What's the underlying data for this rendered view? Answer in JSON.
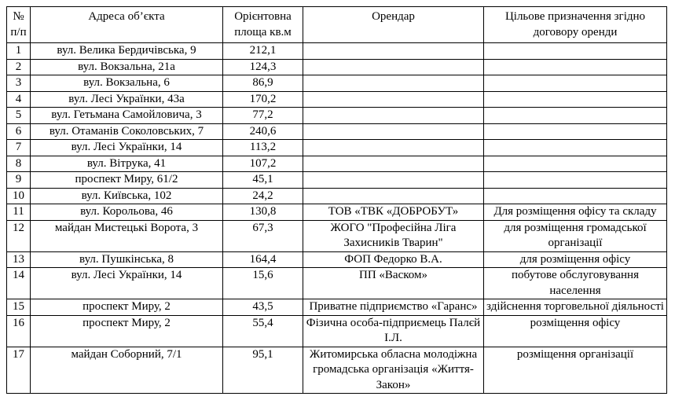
{
  "colors": {
    "border": "#000000",
    "text": "#000000",
    "background": "#ffffff"
  },
  "table": {
    "headers": {
      "num": "№ п/п",
      "address": "Адреса об’єкта",
      "area": "Орієнтовна площа кв.м",
      "tenant": "Орендар",
      "purpose": "Цільове призначення згідно договору оренди"
    },
    "rows": [
      {
        "num": "1",
        "address": "вул. Велика Бердичівська, 9",
        "area": "212,1",
        "tenant": "",
        "purpose": ""
      },
      {
        "num": "2",
        "address": "вул. Вокзальна, 21а",
        "area": "124,3",
        "tenant": "",
        "purpose": ""
      },
      {
        "num": "3",
        "address": "вул. Вокзальна, 6",
        "area": "86,9",
        "tenant": "",
        "purpose": ""
      },
      {
        "num": "4",
        "address": "вул. Лесі Українки, 43а",
        "area": "170,2",
        "tenant": "",
        "purpose": ""
      },
      {
        "num": "5",
        "address": "вул. Гетьмана Самойловича, 3",
        "area": "77,2",
        "tenant": "",
        "purpose": ""
      },
      {
        "num": "6",
        "address": "вул. Отаманів Соколовських, 7",
        "area": "240,6",
        "tenant": "",
        "purpose": ""
      },
      {
        "num": "7",
        "address": "вул. Лесі Українки, 14",
        "area": "113,2",
        "tenant": "",
        "purpose": ""
      },
      {
        "num": "8",
        "address": "вул. Вітрука, 41",
        "area": "107,2",
        "tenant": "",
        "purpose": ""
      },
      {
        "num": "9",
        "address": "проспект Миру, 61/2",
        "area": "45,1",
        "tenant": "",
        "purpose": ""
      },
      {
        "num": "10",
        "address": "вул. Київська, 102",
        "area": "24,2",
        "tenant": "",
        "purpose": ""
      },
      {
        "num": "11",
        "address": "вул. Корольова, 46",
        "area": "130,8",
        "tenant": "ТОВ «ТВК «ДОБРОБУТ»",
        "purpose": "Для розміщення  офісу та складу"
      },
      {
        "num": "12",
        "address": "майдан Мистецькі Ворота, 3",
        "area": "67,3",
        "tenant": "ЖОГО \"Професійна Ліга Захисників Тварин\"",
        "purpose": "для розміщення громадської організації"
      },
      {
        "num": "13",
        "address": "вул. Пушкінська, 8",
        "area": "164,4",
        "tenant": "ФОП Федорко В.А.",
        "purpose": "для розміщення  офісу"
      },
      {
        "num": "14",
        "address": "вул. Лесі Українки, 14",
        "area": "15,6",
        "tenant": "ПП «Васком»",
        "purpose": "побутове обслуговування населення"
      },
      {
        "num": "15",
        "address": "проспект Миру, 2",
        "area": "43,5",
        "tenant": "Приватне підприємство «Гаранс»",
        "purpose": "здійснення торговельної діяльності"
      },
      {
        "num": "16",
        "address": "проспект Миру, 2",
        "area": "55,4",
        "tenant": "Фізична особа-підприємець Палєй І.Л.",
        "purpose": "розміщення офісу"
      },
      {
        "num": "17",
        "address": "майдан Соборний, 7/1",
        "area": "95,1",
        "tenant": "Житомирська обласна молодіжна громадська організація «Життя-Закон»",
        "purpose": "розміщення організації"
      }
    ]
  }
}
